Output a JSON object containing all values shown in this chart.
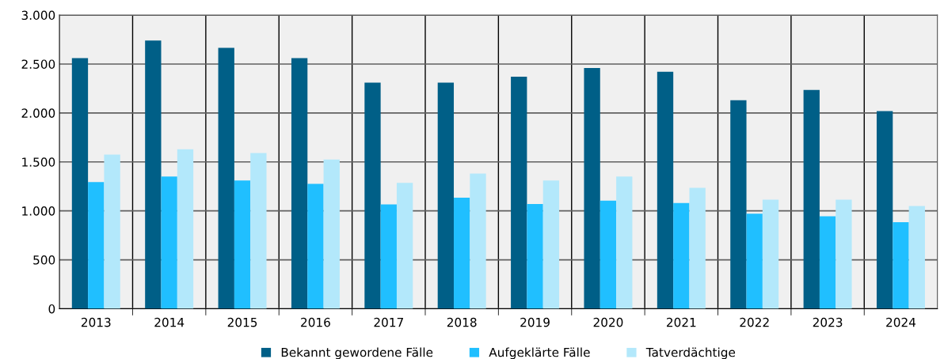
{
  "chart_data": {
    "type": "bar",
    "categories": [
      "2013",
      "2014",
      "2015",
      "2016",
      "2017",
      "2018",
      "2019",
      "2020",
      "2021",
      "2022",
      "2023",
      "2024"
    ],
    "series": [
      {
        "name": "Bekannt gewordene Fälle",
        "color": "#005f87",
        "values": [
          2560,
          2740,
          2665,
          2560,
          2310,
          2310,
          2370,
          2460,
          2420,
          2130,
          2235,
          2020
        ]
      },
      {
        "name": "Aufgeklärte Fälle",
        "color": "#20bfff",
        "values": [
          1295,
          1350,
          1310,
          1275,
          1065,
          1135,
          1070,
          1105,
          1080,
          970,
          945,
          885
        ]
      },
      {
        "name": "Tatverdächtige",
        "color": "#b3e8fb",
        "values": [
          1575,
          1630,
          1590,
          1525,
          1285,
          1380,
          1310,
          1350,
          1235,
          1115,
          1115,
          1050
        ]
      }
    ],
    "ylim": [
      0,
      3000
    ],
    "yticks": [
      0,
      500,
      {
        "value": 1000,
        "label": "1.000"
      },
      {
        "value": 1500,
        "label": "1.500"
      },
      {
        "value": 2000,
        "label": "2.000"
      },
      {
        "value": 2500,
        "label": "2.500"
      },
      {
        "value": 3000,
        "label": "3.000"
      }
    ],
    "grid": true,
    "legend": "bottom"
  }
}
